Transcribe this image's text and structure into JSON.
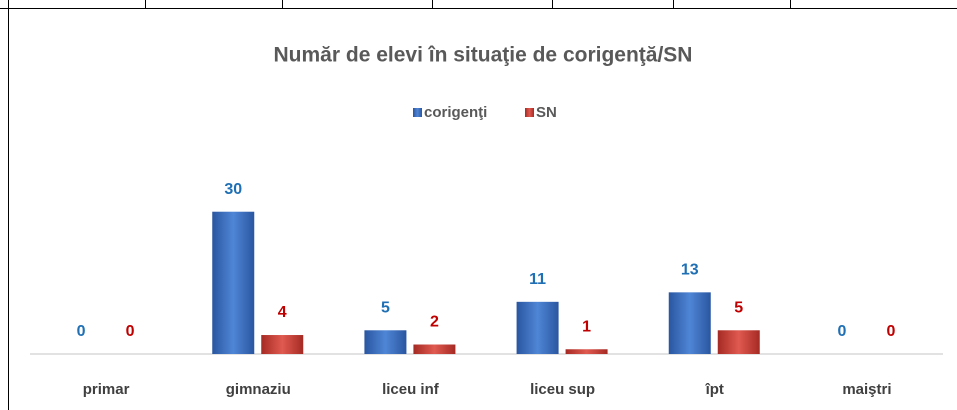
{
  "chart_data": {
    "type": "bar",
    "title": "Număr de elevi în situaţie de corigenţă/SN",
    "categories": [
      "primar",
      "gimnaziu",
      "liceu inf",
      "liceu sup",
      "îpt",
      "maiştri"
    ],
    "series": [
      {
        "name": "corigenţi",
        "color": "#3a6fc4",
        "values": [
          0,
          30,
          5,
          11,
          13,
          0
        ]
      },
      {
        "name": "SN",
        "color": "#c0392b",
        "values": [
          0,
          4,
          2,
          1,
          5,
          0
        ]
      }
    ],
    "value_label_colors": [
      "#1f6fb5",
      "#c00000"
    ],
    "ylim": [
      0,
      35
    ],
    "legend": "top"
  }
}
